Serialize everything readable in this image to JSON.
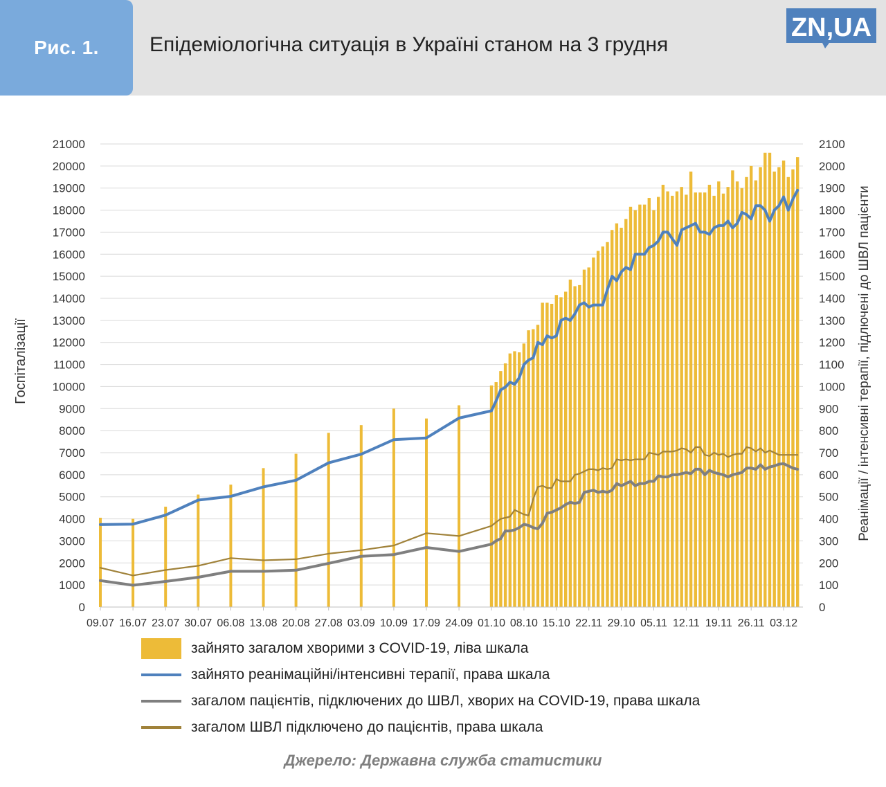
{
  "header": {
    "figure_label": "Рис. 1.",
    "title": "Епідеміологічна ситуація в Україні станом на 3 грудня",
    "logo_text": "ZN,UA"
  },
  "source": "Джерело: Державна служба статистики",
  "colors": {
    "bars": "#edbb38",
    "icu": "#4f81bd",
    "vent_covid": "#7f7f7f",
    "vent_total": "#a0823a",
    "header_bg": "#e3e3e3",
    "fig_box": "#7aaadc"
  },
  "chart_data": {
    "type": "bar",
    "title": "",
    "ylabel_left": "Госпіталізації",
    "ylabel_right": "Реанімації / інтенсивні терапії, підлючені до ШВЛ пацієнти",
    "ylim_left": [
      0,
      21000
    ],
    "ylim_right": [
      0,
      2100
    ],
    "yticks_left": [
      "0",
      "1000",
      "2000",
      "3000",
      "4000",
      "5000",
      "6000",
      "7000",
      "8000",
      "9000",
      "10000",
      "11000",
      "12000",
      "13000",
      "14000",
      "15000",
      "16000",
      "17000",
      "18000",
      "19000",
      "20000",
      "21000"
    ],
    "yticks_right": [
      "0",
      "100",
      "200",
      "300",
      "400",
      "500",
      "600",
      "700",
      "800",
      "900",
      "1000",
      "1100",
      "1200",
      "1300",
      "1400",
      "1500",
      "1600",
      "1700",
      "1800",
      "1900",
      "2000",
      "2100"
    ],
    "xticks": [
      "09.07",
      "16.07",
      "23.07",
      "30.07",
      "06.08",
      "13.08",
      "20.08",
      "27.08",
      "03.09",
      "10.09",
      "17.09",
      "24.09",
      "01.10",
      "08.10",
      "15.10",
      "22.11",
      "29.10",
      "05.11",
      "12.11",
      "19.11",
      "26.11",
      "03.12"
    ],
    "grid": true,
    "legend_position": "bottom",
    "series": [
      {
        "name": "зайнято загалом хворими з COVID-19, ліва шкала",
        "type": "bar",
        "axis": "left",
        "weekly_values": [
          4050,
          4000,
          4550,
          5100,
          5550,
          6300,
          6950,
          7900,
          8250,
          9000,
          8550,
          9150
        ],
        "daily_values": [
          10050,
          10200,
          10700,
          11050,
          11500,
          11600,
          11550,
          11950,
          12550,
          12600,
          12800,
          13800,
          13800,
          13750,
          14150,
          14050,
          14300,
          14850,
          14550,
          14600,
          15300,
          15400,
          15850,
          16150,
          16350,
          16550,
          17100,
          17400,
          17200,
          17600,
          18150,
          18000,
          18250,
          18250,
          18550,
          18000,
          18600,
          19150,
          18850,
          18650,
          18850,
          19050,
          18700,
          19750,
          18800,
          18800,
          18800,
          19150,
          18650,
          19300,
          18750,
          19050,
          19800,
          19300,
          19000,
          19500,
          20000,
          19350,
          19950,
          20600,
          20600,
          19750,
          19950,
          20250,
          19500,
          19850,
          20400
        ]
      },
      {
        "name": "зайнято реанімаційні/інтенсивні терапії, права шкала",
        "type": "line",
        "axis": "right",
        "weekly_values": [
          374,
          376,
          417,
          485,
          502,
          545,
          575,
          654,
          693,
          759,
          767,
          857
        ],
        "daily_values": [
          890,
          935,
          985,
          997,
          1020,
          1010,
          1040,
          1100,
          1120,
          1130,
          1200,
          1190,
          1230,
          1220,
          1230,
          1300,
          1310,
          1300,
          1330,
          1370,
          1380,
          1360,
          1370,
          1370,
          1370,
          1440,
          1500,
          1480,
          1520,
          1540,
          1530,
          1600,
          1600,
          1600,
          1630,
          1640,
          1660,
          1700,
          1700,
          1670,
          1640,
          1710,
          1720,
          1730,
          1740,
          1700,
          1700,
          1690,
          1720,
          1730,
          1730,
          1750,
          1720,
          1740,
          1790,
          1780,
          1760,
          1820,
          1820,
          1800,
          1750,
          1800,
          1820,
          1860,
          1800,
          1850,
          1890
        ]
      },
      {
        "name": "загалом пацієнтів, підключених до ШВЛ, хворих на COVID-19, права шкала",
        "type": "line",
        "axis": "right",
        "weekly_values": [
          120,
          99,
          116,
          135,
          162,
          162,
          167,
          198,
          230,
          238,
          270,
          252
        ],
        "daily_values": [
          285,
          300,
          310,
          345,
          345,
          350,
          360,
          375,
          370,
          360,
          355,
          380,
          425,
          430,
          440,
          450,
          465,
          475,
          470,
          475,
          520,
          525,
          530,
          520,
          525,
          520,
          530,
          560,
          550,
          560,
          570,
          550,
          560,
          560,
          570,
          570,
          595,
          590,
          590,
          600,
          600,
          605,
          610,
          605,
          625,
          625,
          600,
          620,
          610,
          605,
          600,
          590,
          600,
          605,
          610,
          630,
          630,
          625,
          645,
          625,
          635,
          640,
          648,
          650,
          640,
          630,
          625
        ]
      },
      {
        "name": "загалом ШВЛ підключено до пацієнтів, права шкала",
        "type": "line",
        "axis": "right",
        "weekly_values": [
          178,
          143,
          168,
          187,
          222,
          212,
          217,
          242,
          258,
          279,
          335,
          322
        ],
        "daily_values": [
          368,
          385,
          400,
          405,
          410,
          440,
          430,
          420,
          415,
          490,
          545,
          550,
          540,
          540,
          580,
          570,
          570,
          570,
          600,
          605,
          615,
          625,
          625,
          620,
          630,
          625,
          630,
          670,
          665,
          670,
          665,
          670,
          670,
          670,
          700,
          695,
          690,
          705,
          705,
          705,
          710,
          720,
          715,
          700,
          725,
          725,
          690,
          685,
          700,
          690,
          695,
          680,
          690,
          695,
          695,
          725,
          720,
          705,
          720,
          700,
          710,
          700,
          690,
          690,
          690,
          690,
          690
        ]
      }
    ]
  }
}
